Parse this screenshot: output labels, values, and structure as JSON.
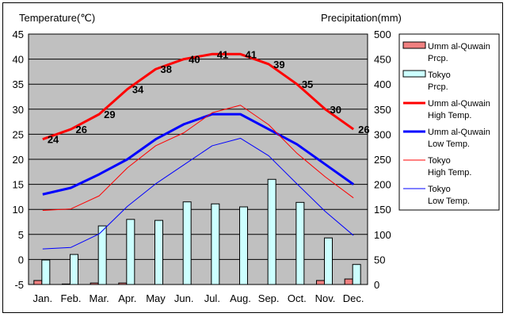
{
  "chart_data": {
    "type": "bar+line",
    "y_left_label": "Temperature(℃)",
    "y_right_label": "Precipitation(mm)",
    "y_left_range": [
      -5,
      45
    ],
    "y_right_range": [
      0,
      500
    ],
    "y_left_ticks": [
      "-5",
      "0",
      "5",
      "10",
      "15",
      "20",
      "25",
      "30",
      "35",
      "40",
      "45"
    ],
    "y_right_ticks": [
      "0",
      "50",
      "100",
      "150",
      "200",
      "250",
      "300",
      "350",
      "400",
      "450",
      "500"
    ],
    "categories": [
      "Jan.",
      "Feb.",
      "Mar.",
      "Apr.",
      "May",
      "Jun.",
      "Jul.",
      "Aug.",
      "Sep.",
      "Oct.",
      "Nov.",
      "Dec."
    ],
    "bar_series": [
      {
        "name": "Umm al-Quwain\nPrcp.",
        "color": "#f08080",
        "values": [
          8,
          1,
          3,
          3,
          0,
          0,
          0,
          0,
          0,
          0,
          8,
          11
        ]
      },
      {
        "name": "Tokyo\nPrcp.",
        "color": "#ccffff",
        "values": [
          49,
          60,
          117,
          130,
          128,
          165,
          161,
          155,
          210,
          164,
          93,
          40
        ]
      }
    ],
    "line_series": [
      {
        "name": "Umm al-Quwain\nHigh Temp.",
        "color": "#ff0000",
        "width": 3,
        "values": [
          24,
          26,
          29,
          34,
          38,
          40,
          41,
          41,
          39,
          35,
          30,
          26
        ],
        "labels": [
          "24",
          "26",
          "29",
          "34",
          "38",
          "40",
          "41",
          "41",
          "39",
          "35",
          "30",
          "26"
        ]
      },
      {
        "name": "Umm al-Quwain\nLow Temp.",
        "color": "#0000ff",
        "width": 3,
        "values": [
          13,
          14.3,
          17,
          20,
          24,
          27,
          29,
          29,
          26,
          23,
          19,
          15
        ]
      },
      {
        "name": "Tokyo\nHigh Temp.",
        "color": "#ff0000",
        "width": 1,
        "values": [
          9.8,
          10.1,
          12.7,
          18.3,
          22.7,
          25.3,
          29.3,
          30.8,
          26.9,
          21.2,
          16.5,
          12.3
        ]
      },
      {
        "name": "Tokyo\nLow Temp.",
        "color": "#0000ff",
        "width": 1,
        "values": [
          2.1,
          2.4,
          5.1,
          10.6,
          15.1,
          18.9,
          22.7,
          24.2,
          20.7,
          15.1,
          9.6,
          4.8
        ]
      }
    ],
    "grid": true,
    "plot_background": "#c0c0c0",
    "legend_position": "right"
  }
}
